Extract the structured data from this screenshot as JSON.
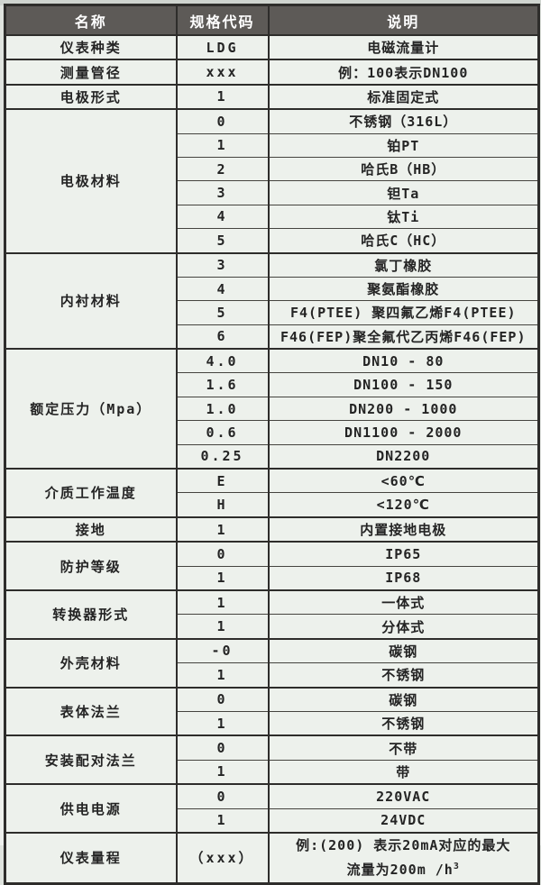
{
  "colors": {
    "header_bg": "#5d5a57",
    "header_text": "#ffffff",
    "cell_bg": "#edf1ec",
    "border": "#2e2d2b",
    "text": "#242424"
  },
  "header": {
    "name": "名称",
    "code": "规格代码",
    "desc": "说明"
  },
  "groups": [
    {
      "name": "仪表种类",
      "rows": [
        {
          "code": "LDG",
          "desc": "电磁流量计"
        }
      ]
    },
    {
      "name": "测量管径",
      "rows": [
        {
          "code": "xxx",
          "desc": "例：100表示DN100"
        }
      ]
    },
    {
      "name": "电极形式",
      "rows": [
        {
          "code": "1",
          "desc": "标准固定式"
        }
      ]
    },
    {
      "name": "电极材料",
      "rows": [
        {
          "code": "0",
          "desc": "不锈钢（316L）"
        },
        {
          "code": "1",
          "desc": "铂PT"
        },
        {
          "code": "2",
          "desc": "哈氏B（HB）"
        },
        {
          "code": "3",
          "desc": "钽Ta"
        },
        {
          "code": "4",
          "desc": "钛Ti"
        },
        {
          "code": "5",
          "desc": "哈氏C（HC）"
        }
      ]
    },
    {
      "name": "内衬材料",
      "rows": [
        {
          "code": "3",
          "desc": "氯丁橡胶"
        },
        {
          "code": "4",
          "desc": "聚氨酯橡胶"
        },
        {
          "code": "5",
          "desc": "F4(PTEE) 聚四氟乙烯F4(PTEE)"
        },
        {
          "code": "6",
          "desc": "F46(FEP)聚全氟代乙丙烯F46(FEP)"
        }
      ]
    },
    {
      "name": "额定压力（Mpa）",
      "rows": [
        {
          "code": "4.0",
          "desc": "DN10 - 80"
        },
        {
          "code": "1.6",
          "desc": "DN100 - 150"
        },
        {
          "code": "1.0",
          "desc": "DN200 - 1000"
        },
        {
          "code": "0.6",
          "desc": "DN1100 - 2000"
        },
        {
          "code": "0.25",
          "desc": "DN2200"
        }
      ]
    },
    {
      "name": "介质工作温度",
      "rows": [
        {
          "code": "E",
          "desc": "<60℃"
        },
        {
          "code": "H",
          "desc": "<120℃"
        }
      ]
    },
    {
      "name": "接地",
      "rows": [
        {
          "code": "1",
          "desc": "内置接地电极"
        }
      ]
    },
    {
      "name": "防护等级",
      "rows": [
        {
          "code": "0",
          "desc": "IP65"
        },
        {
          "code": "1",
          "desc": "IP68"
        }
      ]
    },
    {
      "name": "转换器形式",
      "rows": [
        {
          "code": "1",
          "desc": "一体式"
        },
        {
          "code": "1",
          "desc": "分体式"
        }
      ]
    },
    {
      "name": "外壳材料",
      "rows": [
        {
          "code": "-0",
          "desc": "碳钢"
        },
        {
          "code": "1",
          "desc": "不锈钢"
        }
      ]
    },
    {
      "name": "表体法兰",
      "rows": [
        {
          "code": "0",
          "desc": "碳钢"
        },
        {
          "code": "1",
          "desc": "不锈钢"
        }
      ]
    },
    {
      "name": "安装配对法兰",
      "rows": [
        {
          "code": "0",
          "desc": "不带"
        },
        {
          "code": "1",
          "desc": "带"
        }
      ]
    },
    {
      "name": "供电电源",
      "rows": [
        {
          "code": "0",
          "desc": "220VAC"
        },
        {
          "code": "1",
          "desc": "24VDC"
        }
      ]
    },
    {
      "name": "仪表量程",
      "rows": [
        {
          "code": "（xxx）",
          "desc": "例:(200) 表示20mA对应的最大",
          "desc2": "流量为200m /h",
          "desc2_sup": "3",
          "tall": true
        }
      ]
    }
  ]
}
